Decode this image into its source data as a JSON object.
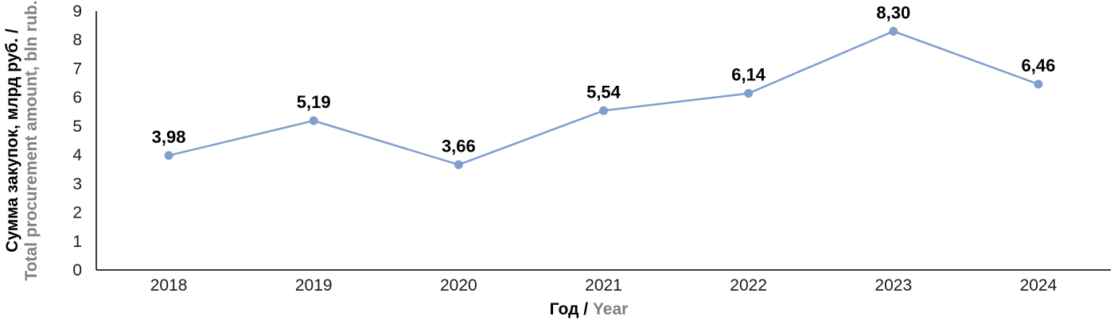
{
  "chart_data": {
    "type": "line",
    "categories": [
      "2018",
      "2019",
      "2020",
      "2021",
      "2022",
      "2023",
      "2024"
    ],
    "series": [
      {
        "values": [
          3.98,
          5.19,
          3.66,
          5.54,
          6.14,
          8.3,
          6.46
        ]
      }
    ],
    "data_labels": [
      "3,98",
      "5,19",
      "3,66",
      "5,54",
      "6,14",
      "8,30",
      "6,46"
    ],
    "y_ticks": [
      "0",
      "1",
      "2",
      "3",
      "4",
      "5",
      "6",
      "7",
      "8",
      "9"
    ],
    "ylim": [
      0,
      9
    ],
    "xlabel_ru": "Год",
    "xlabel_sep": " / ",
    "xlabel_en": "Year",
    "ylabel_ru": "Сумма закупок, млрд руб. /",
    "ylabel_en": "Total procurement amount, bln rub.",
    "grid": false,
    "legend": "none",
    "colors": {
      "line": "#7f9fcf",
      "marker": "#7f9fcf",
      "axis": "#000000"
    }
  }
}
